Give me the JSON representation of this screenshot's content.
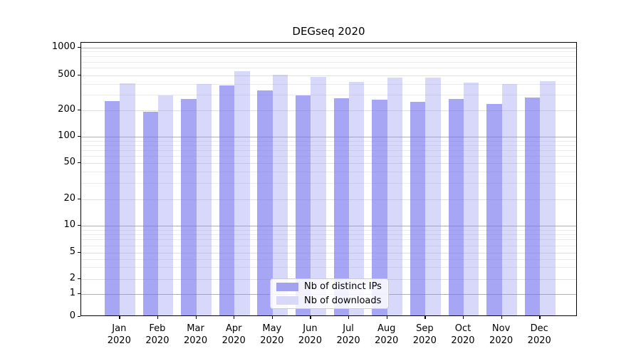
{
  "title": "DEGseq 2020",
  "legend": {
    "items": [
      {
        "label": "Nb of distinct IPs",
        "color": "#a2a2ef"
      },
      {
        "label": "Nb of downloads",
        "color": "#d8d8f8"
      }
    ]
  },
  "chart_data": {
    "type": "bar",
    "title": "DEGseq 2020",
    "categories": [
      "Jan 2020",
      "Feb 2020",
      "Mar 2020",
      "Apr 2020",
      "May 2020",
      "Jun 2020",
      "Jul 2020",
      "Aug 2020",
      "Sep 2020",
      "Oct 2020",
      "Nov 2020",
      "Dec 2020"
    ],
    "series": [
      {
        "name": "Nb of distinct IPs",
        "color": "#a2a2ef",
        "values": [
          245,
          184,
          261,
          368,
          323,
          283,
          264,
          255,
          241,
          258,
          227,
          268
        ]
      },
      {
        "name": "Nb of downloads",
        "color": "#d8d8f8",
        "values": [
          386,
          283,
          384,
          531,
          482,
          458,
          408,
          453,
          448,
          394,
          379,
          414
        ]
      }
    ],
    "xlabel": "",
    "ylabel": "",
    "yscale": "symlog",
    "ylim": [
      0,
      1000
    ],
    "yticks": [
      0,
      1,
      2,
      5,
      10,
      20,
      50,
      100,
      200,
      500,
      1000
    ],
    "grid": true,
    "legend_position": "lower center"
  }
}
